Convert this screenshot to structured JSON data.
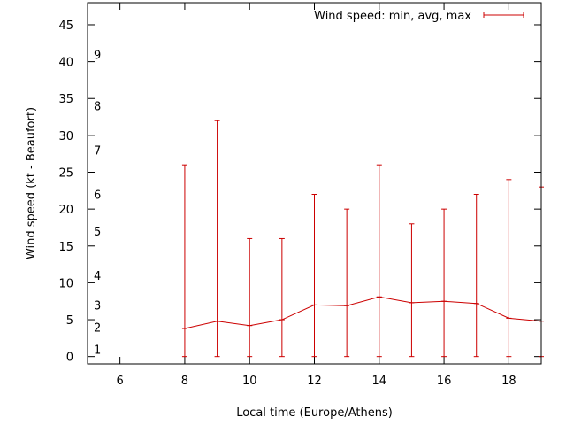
{
  "chart_data": {
    "type": "line",
    "title": "",
    "xlabel": "Local time (Europe/Athens)",
    "ylabel": "Wind speed (kt - Beaufort)",
    "xlim": [
      5,
      19
    ],
    "ylim": [
      -1,
      48
    ],
    "xticks": [
      6,
      8,
      10,
      12,
      14,
      16,
      18
    ],
    "yticks": [
      0,
      5,
      10,
      15,
      20,
      25,
      30,
      35,
      40,
      45
    ],
    "beaufort_labels": [
      {
        "label": "1",
        "y": 1
      },
      {
        "label": "2",
        "y": 4
      },
      {
        "label": "3",
        "y": 7
      },
      {
        "label": "4",
        "y": 11
      },
      {
        "label": "5",
        "y": 17
      },
      {
        "label": "6",
        "y": 22
      },
      {
        "label": "7",
        "y": 28
      },
      {
        "label": "8",
        "y": 34
      },
      {
        "label": "9",
        "y": 41
      }
    ],
    "legend": {
      "label": "Wind speed: min, avg, max",
      "position": "top-right"
    },
    "series": [
      {
        "name": "Wind speed: min, avg, max",
        "color": "#cc0000",
        "x": [
          8,
          9,
          10,
          11,
          12,
          13,
          14,
          15,
          16,
          17,
          18,
          19
        ],
        "avg": [
          3.8,
          4.8,
          4.2,
          5.0,
          7.0,
          6.9,
          8.1,
          7.3,
          7.5,
          7.2,
          5.2,
          4.8
        ],
        "min": [
          0,
          0,
          0,
          0,
          0,
          0,
          0,
          0,
          0,
          0,
          0,
          0
        ],
        "max": [
          26,
          32,
          16,
          16,
          22,
          20,
          26,
          18,
          20,
          22,
          24,
          23
        ]
      }
    ]
  }
}
